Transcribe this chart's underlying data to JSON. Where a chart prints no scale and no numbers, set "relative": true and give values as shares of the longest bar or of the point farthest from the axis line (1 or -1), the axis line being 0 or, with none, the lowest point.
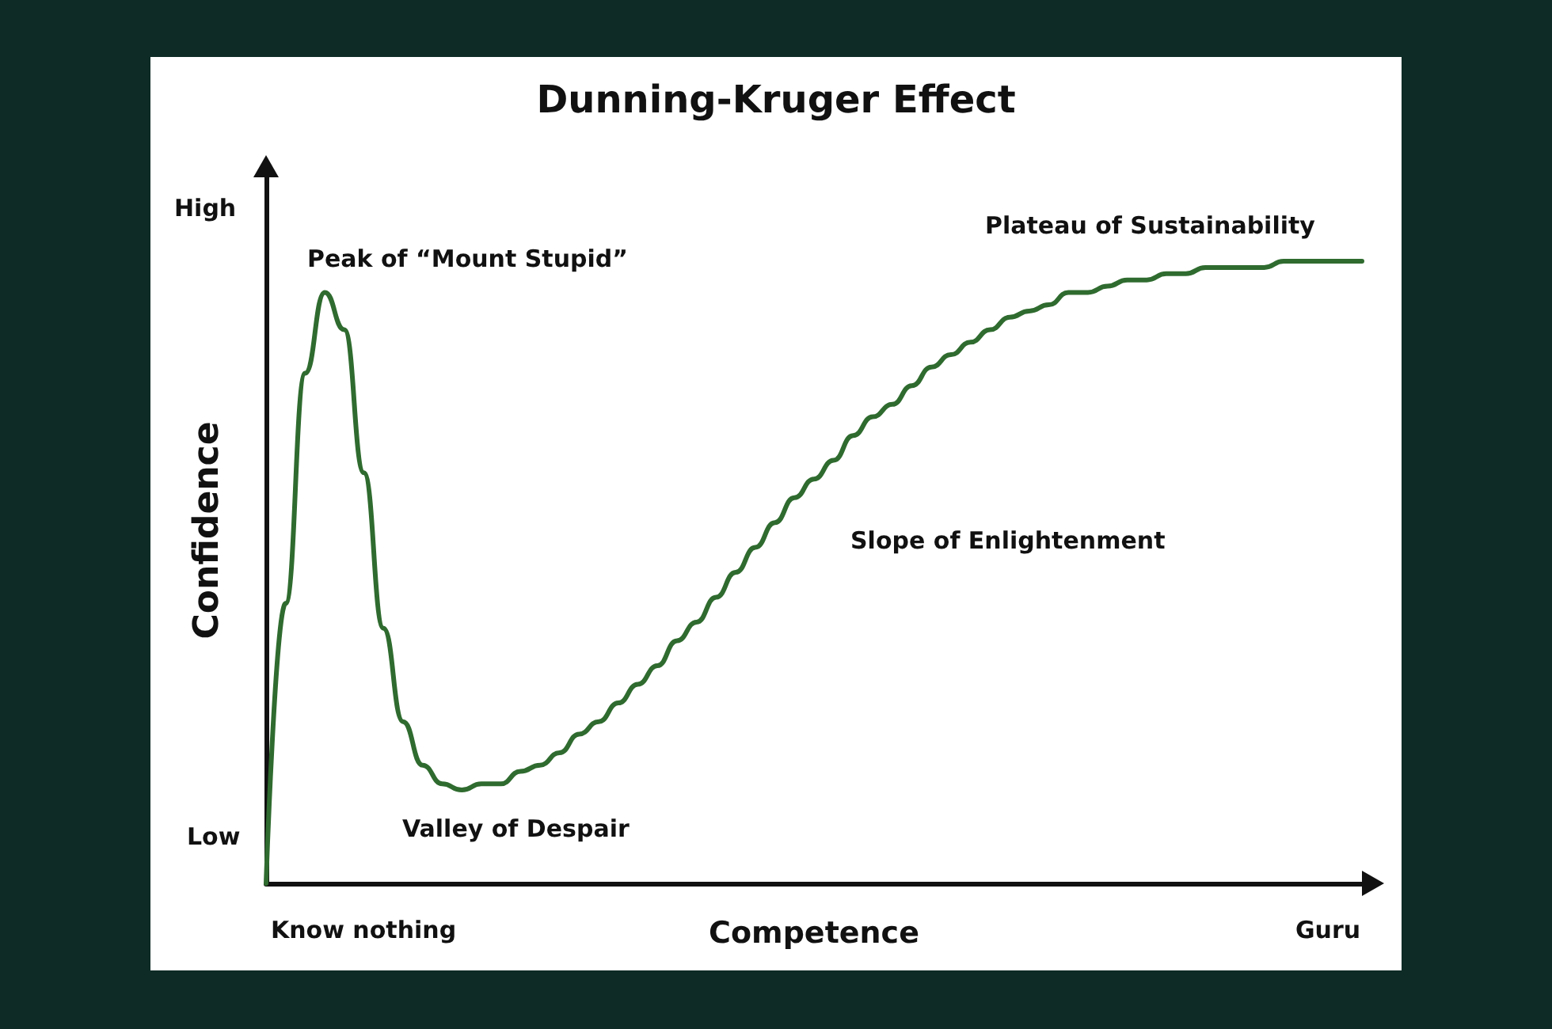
{
  "chart_data": {
    "type": "line",
    "title": "Dunning-Kruger Effect",
    "xlabel": "Competence",
    "ylabel": "Confidence",
    "relative": true,
    "grid": false,
    "marker": "none",
    "line_style": "solid",
    "categories": [
      null,
      null,
      null,
      null,
      null,
      null,
      null,
      null,
      null,
      null,
      null,
      null,
      null,
      null,
      null,
      null,
      null,
      null,
      null,
      null,
      null,
      null,
      null,
      null,
      null,
      null,
      null,
      null,
      null,
      null,
      null,
      null,
      null,
      null,
      null,
      null,
      null,
      null,
      null,
      null,
      null,
      null,
      null,
      null,
      null,
      null,
      null,
      null,
      null,
      null,
      null,
      null,
      null,
      null,
      null,
      null,
      null
    ],
    "series": [
      {
        "color": "#2f6b2f",
        "values": [
          0,
          0.45,
          0.82,
          0.95,
          0.89,
          0.66,
          0.41,
          0.26,
          0.19,
          0.16,
          0.15,
          0.16,
          0.16,
          0.18,
          0.19,
          0.21,
          0.24,
          0.26,
          0.29,
          0.32,
          0.35,
          0.39,
          0.42,
          0.46,
          0.5,
          0.54,
          0.58,
          0.62,
          0.65,
          0.68,
          0.72,
          0.75,
          0.77,
          0.8,
          0.83,
          0.85,
          0.87,
          0.89,
          0.91,
          0.92,
          0.93,
          0.95,
          0.95,
          0.96,
          0.97,
          0.97,
          0.98,
          0.98,
          0.99,
          0.99,
          0.99,
          0.99,
          1,
          1,
          1,
          1,
          1
        ]
      }
    ],
    "annotations": [
      "High",
      "Low",
      "Know nothing",
      "Guru",
      "Peak of “Mount Stupid”",
      "Valley of Despair",
      "Slope of Enlightenment",
      "Plateau of Sustainability"
    ]
  }
}
